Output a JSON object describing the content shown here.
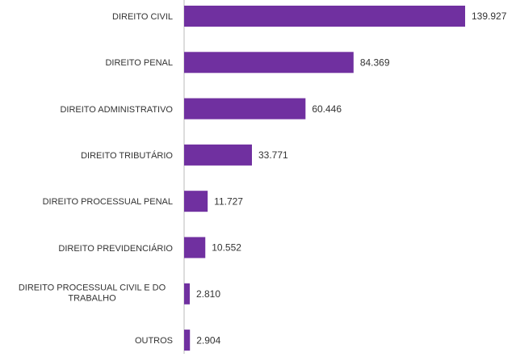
{
  "chart_data": {
    "type": "bar",
    "orientation": "horizontal",
    "categories": [
      "DIREITO CIVIL",
      "DIREITO PENAL",
      "DIREITO ADMINISTRATIVO",
      "DIREITO TRIBUTÁRIO",
      "DIREITO PROCESSUAL PENAL",
      "DIREITO PREVIDENCIÁRIO",
      "DIREITO PROCESSUAL CIVIL E DO TRABALHO",
      "OUTROS"
    ],
    "values": [
      139927,
      84369,
      60446,
      33771,
      11727,
      10552,
      2810,
      2904
    ],
    "value_labels": [
      "139.927",
      "84.369",
      "60.446",
      "33.771",
      "11.727",
      "10.552",
      "2.810",
      "2.904"
    ],
    "color": "#7030a0"
  }
}
